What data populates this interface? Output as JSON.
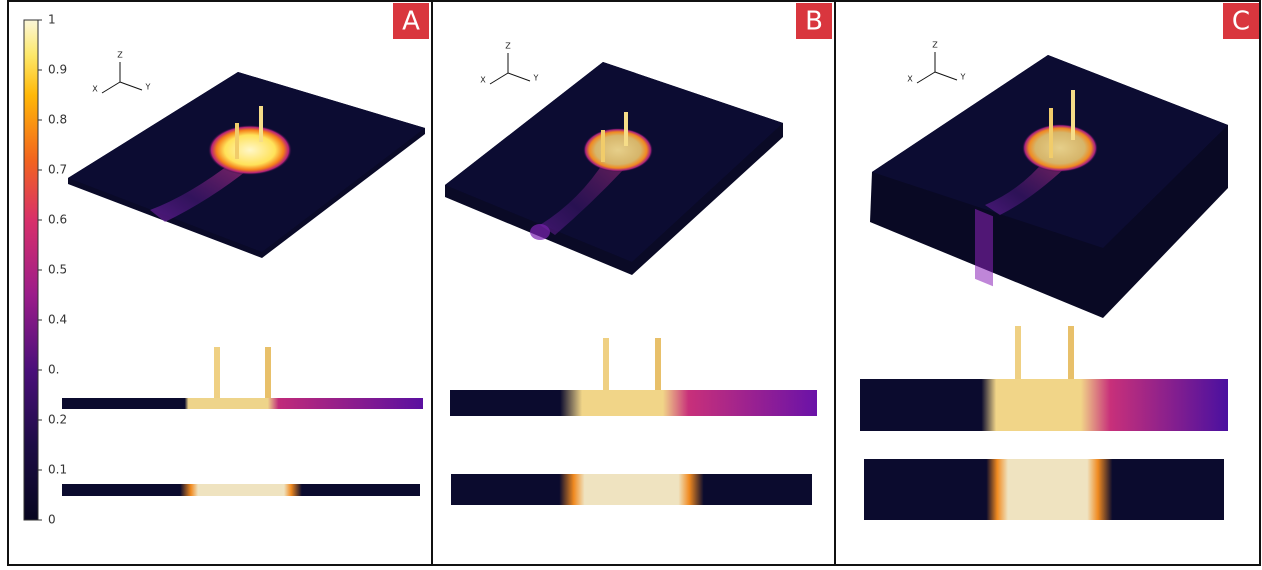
{
  "colorbar": {
    "ticks": [
      0,
      0.1,
      0.2,
      {
        "value": 0.3,
        "label": "0."
      },
      0.4,
      0.5,
      0.6,
      0.7,
      0.8,
      0.9,
      1
    ]
  },
  "panels": [
    {
      "label": "A",
      "axes": {
        "z": "Z",
        "x": "X",
        "y": "Y"
      }
    },
    {
      "label": "B",
      "axes": {
        "z": "Z",
        "x": "X",
        "y": "Y"
      }
    },
    {
      "label": "C",
      "axes": {
        "z": "Z",
        "x": "X",
        "y": "Y"
      }
    }
  ]
}
